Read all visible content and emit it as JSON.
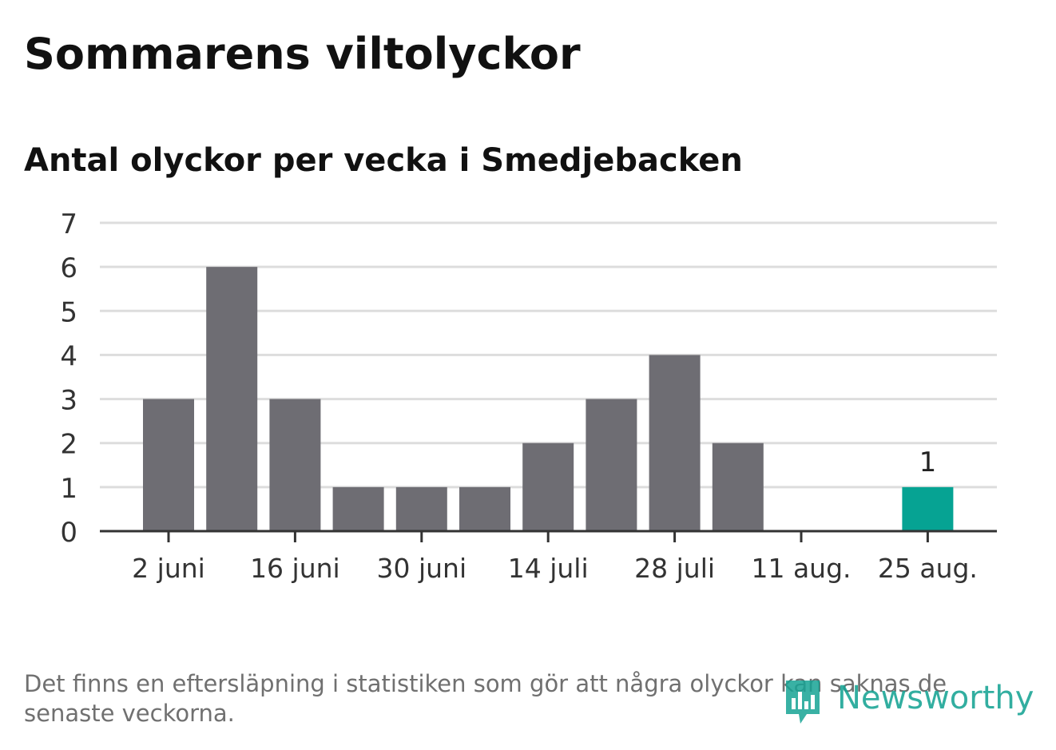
{
  "title": "Sommarens viltolyckor",
  "subtitle": "Antal olyckor per vecka i Smedjebacken",
  "note": "Det finns en eftersläpning i statistiken som gör att några olyckor kan saknas de senaste veckorna.",
  "logo_text": "Newsworthy",
  "colors": {
    "bar": "#6e6d73",
    "highlight": "#06a393",
    "grid": "#dddddd",
    "axis": "#333333",
    "logo": "#16a394"
  },
  "chart_data": {
    "type": "bar",
    "title": "Antal olyckor per vecka i Smedjebacken",
    "xlabel": "",
    "ylabel": "",
    "ylim": [
      0,
      7
    ],
    "yticks": [
      0,
      1,
      2,
      3,
      4,
      5,
      6,
      7
    ],
    "grid": true,
    "x_tick_labels": [
      "2 juni",
      "16 juni",
      "30 juni",
      "14 juli",
      "28 juli",
      "11 aug.",
      "25 aug."
    ],
    "x_tick_every": 2,
    "values": [
      3,
      6,
      3,
      1,
      1,
      1,
      2,
      3,
      4,
      2,
      0,
      0,
      1
    ],
    "highlight_index": 12,
    "data_labels": [
      {
        "index": 12,
        "text": "1"
      }
    ]
  }
}
